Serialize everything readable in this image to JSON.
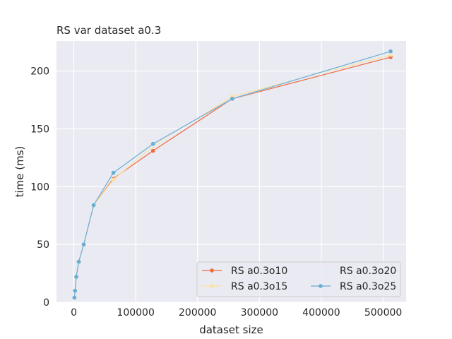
{
  "chart_data": {
    "type": "line",
    "title": "RS var dataset a0.3",
    "xlabel": "dataset size",
    "ylabel": "time (ms)",
    "xlim": [
      -28000,
      537000
    ],
    "ylim": [
      0,
      226
    ],
    "xticks": [
      0,
      100000,
      200000,
      300000,
      400000,
      500000
    ],
    "xtick_labels": [
      "0",
      "100000",
      "200000",
      "300000",
      "400000",
      "500000"
    ],
    "yticks": [
      0,
      50,
      100,
      150,
      200
    ],
    "ytick_labels": [
      "0",
      "50",
      "100",
      "150",
      "200"
    ],
    "grid": true,
    "legend_position": "lower right",
    "legend_columns": 2,
    "x": [
      1000,
      2000,
      4000,
      8000,
      16000,
      32000,
      64000,
      128000,
      256000,
      512000
    ],
    "series": [
      {
        "name": "RS a0.3o10",
        "color": "#ee6a43",
        "values": [
          4,
          10,
          22,
          35,
          50,
          84,
          107,
          131,
          176,
          212
        ]
      },
      {
        "name": "RS a0.3o15",
        "color": "#fde0a2",
        "values": [
          4,
          10,
          22,
          34,
          50,
          84,
          106,
          135,
          178,
          214
        ]
      },
      {
        "name": "RS a0.3o20",
        "color": "#e3eef6",
        "values": [
          4,
          10,
          22,
          34,
          50,
          85,
          110,
          136,
          176,
          216
        ]
      },
      {
        "name": "RS a0.3o25",
        "color": "#69add2",
        "values": [
          4,
          10,
          22,
          35,
          50,
          84,
          112,
          137,
          176,
          217
        ]
      }
    ]
  }
}
